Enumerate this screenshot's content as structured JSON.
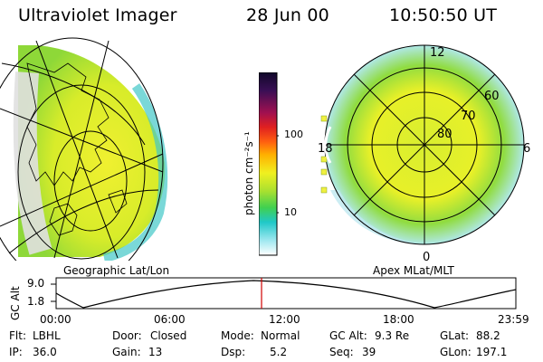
{
  "header": {
    "instrument": "Ultraviolet Imager",
    "date": "28 Jun 00",
    "time": "10:50:50 UT"
  },
  "colorbar": {
    "title": "photon cm⁻²s⁻¹",
    "ticks": [
      "100",
      "10"
    ],
    "colors": [
      "#1a0a2a",
      "#3a0f55",
      "#7a1a6a",
      "#c0102a",
      "#ff3010",
      "#ff8c00",
      "#ffd400",
      "#d8f020",
      "#70e030",
      "#20c8c8",
      "#80e0f0",
      "#ffffff"
    ]
  },
  "left_panel": {
    "label": "Geographic Lat/Lon"
  },
  "right_panel": {
    "label": "Apex MLat/MLT",
    "mlt_labels": [
      "12",
      "18",
      "6",
      "0"
    ],
    "lat_labels": [
      "60",
      "70",
      "80"
    ]
  },
  "timeline": {
    "ylabel": "GC Alt",
    "yticks": [
      "9.0",
      "1.8"
    ],
    "xticks": [
      "00:00",
      "06:00",
      "12:00",
      "18:00",
      "23:59"
    ],
    "current_time_marker": "10:50:50",
    "marker_color": "#d00000"
  },
  "info": {
    "row1": [
      {
        "label": "Flt:",
        "value": "LBHL"
      },
      {
        "label": "Door:",
        "value": "Closed"
      },
      {
        "label": "Mode:",
        "value": "Normal"
      },
      {
        "label": "GC Alt:",
        "value": "9.3 Re"
      },
      {
        "label": "GLat:",
        "value": "88.2"
      }
    ],
    "row2": [
      {
        "label": "IP:",
        "value": "36.0"
      },
      {
        "label": "Gain:",
        "value": "13"
      },
      {
        "label": "Dsp:",
        "value": "5.2"
      },
      {
        "label": "Seq:",
        "value": "39"
      },
      {
        "label": "GLon:",
        "value": "197.1"
      }
    ]
  }
}
